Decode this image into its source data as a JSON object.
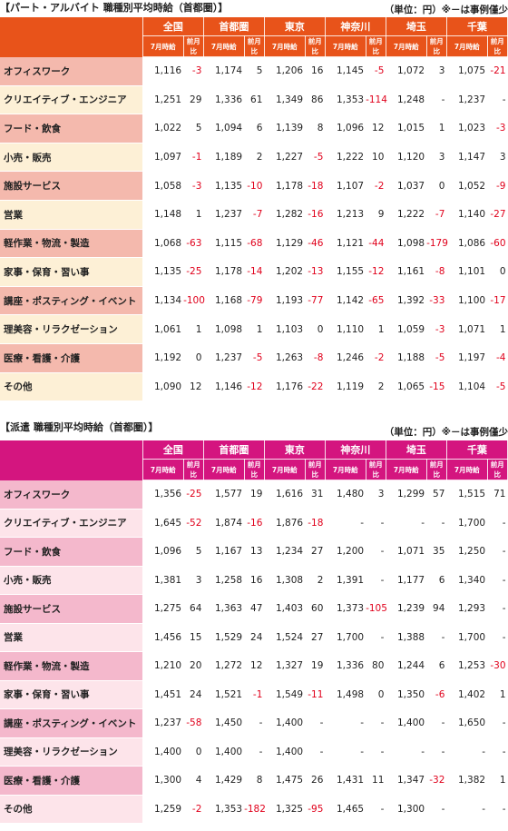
{
  "regions": [
    "全国",
    "首都圏",
    "東京",
    "神奈川",
    "埼玉",
    "千葉"
  ],
  "sub_headers": {
    "value": "7月時給",
    "diff": "前月比"
  },
  "tables": [
    {
      "title": "【パート・アルバイト 職種別平均時給（首都圏）】",
      "unit": "（単位：円）※－は事例僅少",
      "rows": [
        {
          "category": "オフィスワーク",
          "cells": [
            "1,116",
            "-3",
            "1,174",
            "5",
            "1,206",
            "16",
            "1,145",
            "-5",
            "1,072",
            "3",
            "1,075",
            "-21"
          ]
        },
        {
          "category": "クリエイティブ・エンジニア",
          "cells": [
            "1,251",
            "29",
            "1,336",
            "61",
            "1,349",
            "86",
            "1,353",
            "-114",
            "1,248",
            "-",
            "1,237",
            "-"
          ]
        },
        {
          "category": "フード・飲食",
          "cells": [
            "1,022",
            "5",
            "1,094",
            "6",
            "1,139",
            "8",
            "1,096",
            "12",
            "1,015",
            "1",
            "1,023",
            "-3"
          ]
        },
        {
          "category": "小売・販売",
          "cells": [
            "1,097",
            "-1",
            "1,189",
            "2",
            "1,227",
            "-5",
            "1,222",
            "10",
            "1,120",
            "3",
            "1,147",
            "3"
          ]
        },
        {
          "category": "施設サービス",
          "cells": [
            "1,058",
            "-3",
            "1,135",
            "-10",
            "1,178",
            "-18",
            "1,107",
            "-2",
            "1,037",
            "0",
            "1,052",
            "-9"
          ]
        },
        {
          "category": "営業",
          "cells": [
            "1,148",
            "1",
            "1,237",
            "-7",
            "1,282",
            "-16",
            "1,213",
            "9",
            "1,222",
            "-7",
            "1,140",
            "-27"
          ]
        },
        {
          "category": "軽作業・物流・製造",
          "cells": [
            "1,068",
            "-63",
            "1,115",
            "-68",
            "1,129",
            "-46",
            "1,121",
            "-44",
            "1,098",
            "-179",
            "1,086",
            "-60"
          ]
        },
        {
          "category": "家事・保育・習い事",
          "cells": [
            "1,135",
            "-25",
            "1,178",
            "-14",
            "1,202",
            "-13",
            "1,155",
            "-12",
            "1,161",
            "-8",
            "1,101",
            "0"
          ]
        },
        {
          "category": "講座・ポスティング・イベント",
          "cells": [
            "1,134",
            "-100",
            "1,168",
            "-79",
            "1,193",
            "-77",
            "1,142",
            "-65",
            "1,392",
            "-33",
            "1,100",
            "-17"
          ]
        },
        {
          "category": "理美容・リラクゼーション",
          "cells": [
            "1,061",
            "1",
            "1,098",
            "1",
            "1,103",
            "0",
            "1,110",
            "1",
            "1,059",
            "-3",
            "1,071",
            "1"
          ]
        },
        {
          "category": "医療・看護・介護",
          "cells": [
            "1,192",
            "0",
            "1,237",
            "-5",
            "1,263",
            "-8",
            "1,246",
            "-2",
            "1,188",
            "-5",
            "1,197",
            "-4"
          ]
        },
        {
          "category": "その他",
          "cells": [
            "1,090",
            "12",
            "1,146",
            "-12",
            "1,176",
            "-22",
            "1,119",
            "2",
            "1,065",
            "-15",
            "1,104",
            "-5"
          ]
        }
      ]
    },
    {
      "title": "【派遣 職種別平均時給（首都圏）】",
      "unit": "（単位：円）※－は事例僅少",
      "rows": [
        {
          "category": "オフィスワーク",
          "cells": [
            "1,356",
            "-25",
            "1,577",
            "19",
            "1,616",
            "31",
            "1,480",
            "3",
            "1,299",
            "57",
            "1,515",
            "71"
          ]
        },
        {
          "category": "クリエイティブ・エンジニア",
          "cells": [
            "1,645",
            "-52",
            "1,874",
            "-16",
            "1,876",
            "-18",
            "-",
            "-",
            "-",
            "-",
            "1,700",
            "-"
          ]
        },
        {
          "category": "フード・飲食",
          "cells": [
            "1,096",
            "5",
            "1,167",
            "13",
            "1,234",
            "27",
            "1,200",
            "-",
            "1,071",
            "35",
            "1,250",
            "-"
          ]
        },
        {
          "category": "小売・販売",
          "cells": [
            "1,381",
            "3",
            "1,258",
            "16",
            "1,308",
            "2",
            "1,391",
            "-",
            "1,177",
            "6",
            "1,340",
            "-"
          ]
        },
        {
          "category": "施設サービス",
          "cells": [
            "1,275",
            "64",
            "1,363",
            "47",
            "1,403",
            "60",
            "1,373",
            "-105",
            "1,239",
            "94",
            "1,293",
            "-"
          ]
        },
        {
          "category": "営業",
          "cells": [
            "1,456",
            "15",
            "1,529",
            "24",
            "1,524",
            "27",
            "1,700",
            "-",
            "1,388",
            "-",
            "1,700",
            "-"
          ]
        },
        {
          "category": "軽作業・物流・製造",
          "cells": [
            "1,210",
            "20",
            "1,272",
            "12",
            "1,327",
            "19",
            "1,336",
            "80",
            "1,244",
            "6",
            "1,253",
            "-30"
          ]
        },
        {
          "category": "家事・保育・習い事",
          "cells": [
            "1,451",
            "24",
            "1,521",
            "-1",
            "1,549",
            "-11",
            "1,498",
            "0",
            "1,350",
            "-6",
            "1,402",
            "1"
          ]
        },
        {
          "category": "講座・ポスティング・イベント",
          "cells": [
            "1,237",
            "-58",
            "1,450",
            "-",
            "1,400",
            "-",
            "-",
            "-",
            "1,400",
            "-",
            "1,650",
            "-"
          ]
        },
        {
          "category": "理美容・リラクゼーション",
          "cells": [
            "1,400",
            "0",
            "1,400",
            "-",
            "1,400",
            "-",
            "-",
            "-",
            "-",
            "-",
            "-",
            "-"
          ]
        },
        {
          "category": "医療・看護・介護",
          "cells": [
            "1,300",
            "4",
            "1,429",
            "8",
            "1,475",
            "26",
            "1,431",
            "11",
            "1,347",
            "-32",
            "1,382",
            "1"
          ]
        },
        {
          "category": "その他",
          "cells": [
            "1,259",
            "-2",
            "1,353",
            "-182",
            "1,325",
            "-95",
            "1,465",
            "-",
            "1,300",
            "-",
            "-",
            "-"
          ]
        }
      ]
    }
  ],
  "colors": {
    "part_header": "#e8531a",
    "part_row_pink": "#f4b9ad",
    "part_row_cream": "#fdf0d6",
    "dispatch_header": "#d4157f",
    "dispatch_row_pink": "#f4b8cc",
    "dispatch_row_light": "#fde4ea",
    "negative": "#e0001b"
  }
}
